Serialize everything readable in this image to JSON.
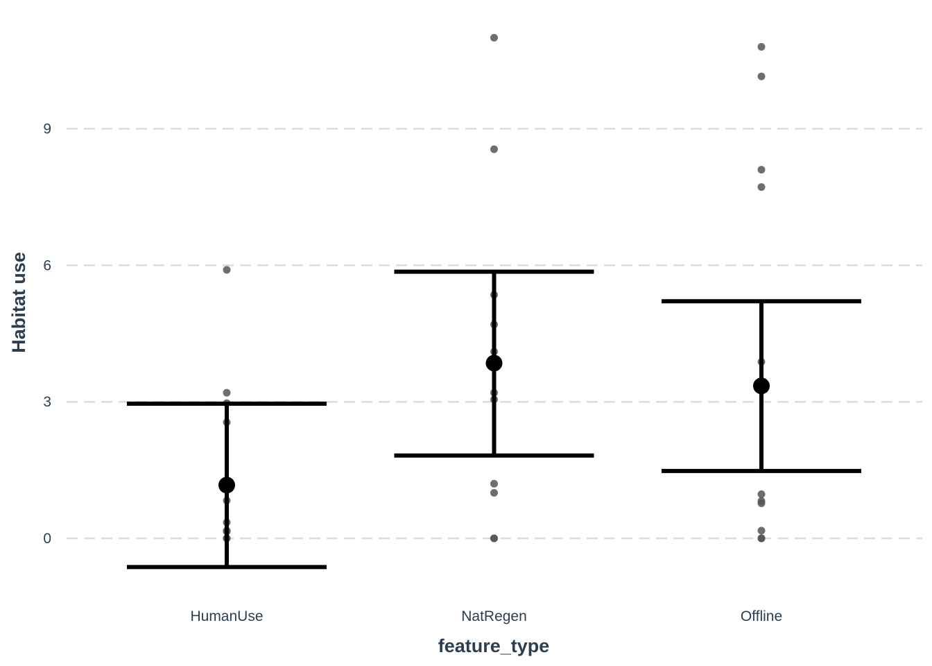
{
  "chart_data": {
    "type": "scatter",
    "xlabel": "feature_type",
    "ylabel": "Habitat use",
    "categories": [
      "HumanUse",
      "NatRegen",
      "Offline"
    ],
    "yticks": [
      0,
      3,
      6,
      9
    ],
    "ylim": [
      -1.2,
      11.8
    ],
    "grid": "horizontal dashed",
    "legend": "none",
    "colors": {
      "points": "#555555",
      "summary": "#000000",
      "text": "#2c3e50",
      "grid": "#dcdcdc"
    },
    "points": [
      [
        5.9,
        3.2,
        2.97,
        2.55,
        0.83,
        0.35,
        0.17,
        0.15,
        0.0,
        0.0
      ],
      [
        11.0,
        8.55,
        5.35,
        4.7,
        4.1,
        3.2,
        3.05,
        1.2,
        1.0,
        0.0,
        0.0
      ],
      [
        10.8,
        10.15,
        8.1,
        7.72,
        3.88,
        0.97,
        0.82,
        0.77,
        0.17,
        0.0,
        0.0
      ]
    ],
    "summary": [
      {
        "category": "HumanUse",
        "mean": 1.17,
        "lower": -0.63,
        "upper": 2.96
      },
      {
        "category": "NatRegen",
        "mean": 3.85,
        "lower": 1.82,
        "upper": 5.86
      },
      {
        "category": "Offline",
        "mean": 3.35,
        "lower": 1.48,
        "upper": 5.21
      }
    ]
  }
}
